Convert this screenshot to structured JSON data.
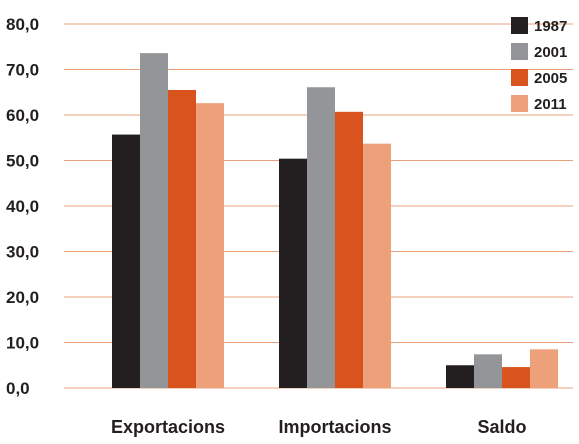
{
  "chart_data": {
    "type": "bar",
    "categories": [
      "Exportacions",
      "Importacions",
      "Saldo"
    ],
    "series": [
      {
        "name": "1987",
        "color": "#231f20",
        "values": [
          55.7,
          50.4,
          5.0
        ]
      },
      {
        "name": "2001",
        "color": "#939598",
        "values": [
          73.6,
          66.1,
          7.4
        ]
      },
      {
        "name": "2005",
        "color": "#d9531e",
        "values": [
          65.5,
          60.7,
          4.6
        ]
      },
      {
        "name": "2011",
        "color": "#eda07a",
        "values": [
          62.6,
          53.7,
          8.5
        ]
      }
    ],
    "y_tick_labels": [
      "0,0",
      "10,0",
      "20,0",
      "30,0",
      "40,0",
      "50,0",
      "60,0",
      "70,0",
      "80,0"
    ],
    "ylim": [
      0,
      80
    ],
    "y_tick_step": 10,
    "grid": true,
    "grid_color": "#e8a07c",
    "legend_position": "top-right",
    "title": "",
    "xlabel": "",
    "ylabel": ""
  }
}
